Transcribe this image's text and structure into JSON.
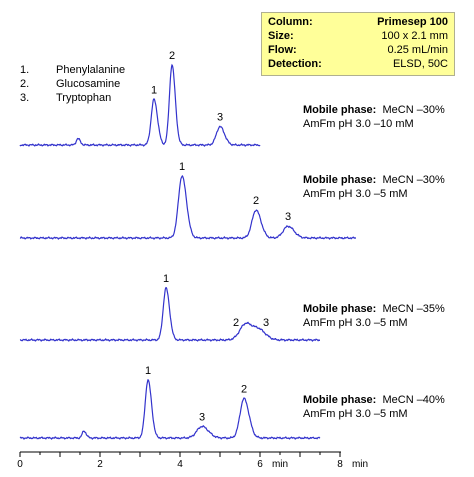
{
  "info_box": [
    {
      "label": "Column:",
      "value": "Primesep 100"
    },
    {
      "label": "Size:",
      "value": "100 x 2.1 mm"
    },
    {
      "label": "Flow:",
      "value": "0.25 mL/min"
    },
    {
      "label": "Detection:",
      "value": "ELSD, 50C"
    }
  ],
  "legend": [
    {
      "number": "1.",
      "name": "Phenylalanine"
    },
    {
      "number": "2.",
      "name": "Glucosamine"
    },
    {
      "number": "3.",
      "name": "Tryptophan"
    }
  ],
  "colors": {
    "trace": "#3333cc",
    "axis": "#000000",
    "box": "#ffff99"
  },
  "chart_data": {
    "type": "line",
    "x_axis": {
      "range": [
        0,
        8
      ],
      "ticks": [
        0,
        2,
        4,
        6,
        8
      ],
      "unit_labels": [
        "min",
        "min"
      ]
    },
    "panels": [
      {
        "mobile_phase_label": "Mobile phase:",
        "mobile_phase_value": "MeCN –30%",
        "buffer": "AmFm pH 3.0 –10 mM",
        "x_range": [
          0,
          6
        ],
        "peaks": [
          {
            "label": "",
            "time": 1.45,
            "height": 0.08,
            "width": 0.045
          },
          {
            "label": "1",
            "time": 3.35,
            "height": 0.57,
            "width": 0.07
          },
          {
            "label": "2",
            "time": 3.8,
            "height": 1.0,
            "width": 0.065
          },
          {
            "label": "3",
            "time": 5.0,
            "height": 0.23,
            "width": 0.09
          }
        ]
      },
      {
        "mobile_phase_label": "Mobile phase:",
        "mobile_phase_value": "MeCN –30%",
        "buffer": "AmFm pH 3.0 –5 mM",
        "x_range": [
          0,
          8.4
        ],
        "peaks": [
          {
            "label": "1",
            "time": 4.05,
            "height": 1.0,
            "width": 0.09
          },
          {
            "label": "2",
            "time": 5.9,
            "height": 0.45,
            "width": 0.1
          },
          {
            "label": "3",
            "time": 6.7,
            "height": 0.19,
            "width": 0.12
          }
        ]
      },
      {
        "mobile_phase_label": "Mobile phase:",
        "mobile_phase_value": "MeCN –35%",
        "buffer": "AmFm pH 3.0 –5 mM",
        "x_range": [
          0,
          7.5
        ],
        "peaks": [
          {
            "label": "1",
            "time": 3.65,
            "height": 1.0,
            "width": 0.07
          },
          {
            "label": "2",
            "time": 5.65,
            "height": 0.32,
            "width": 0.15
          },
          {
            "label": "3",
            "time": 6.0,
            "height": 0.16,
            "width": 0.13
          }
        ]
      },
      {
        "mobile_phase_label": "Mobile phase:",
        "mobile_phase_value": "MeCN –40%",
        "buffer": "AmFm pH 3.0 –5 mM",
        "x_range": [
          0,
          7.5
        ],
        "peaks": [
          {
            "label": "",
            "time": 1.6,
            "height": 0.12,
            "width": 0.045
          },
          {
            "label": "1",
            "time": 3.2,
            "height": 1.0,
            "width": 0.07
          },
          {
            "label": "3",
            "time": 4.55,
            "height": 0.2,
            "width": 0.13
          },
          {
            "label": "2",
            "time": 5.6,
            "height": 0.68,
            "width": 0.1
          }
        ]
      }
    ]
  }
}
